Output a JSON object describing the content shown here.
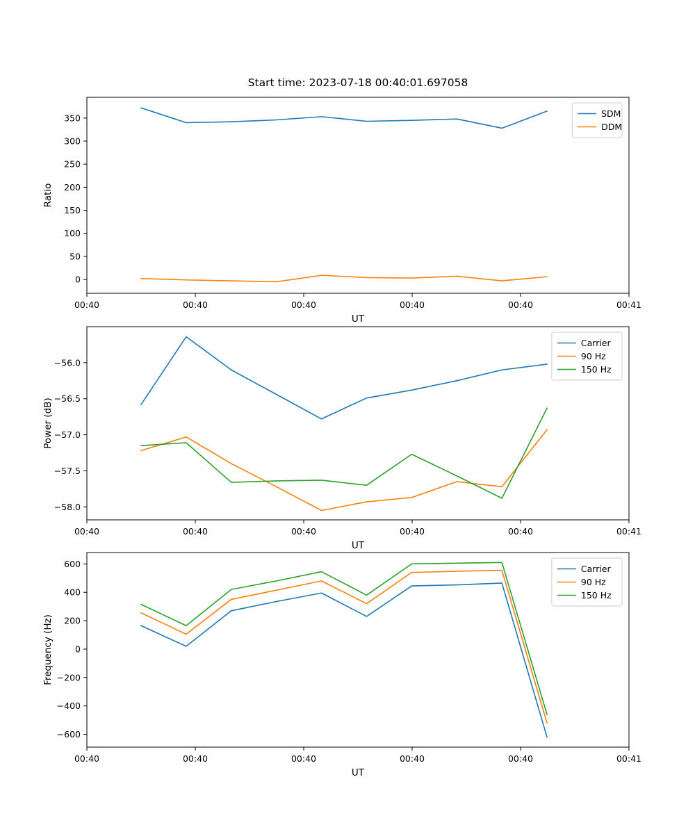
{
  "chart_data": [
    {
      "type": "line",
      "title": "Start time: 2023-07-18 00:40:01.697058",
      "xlabel": "UT",
      "ylabel": "Ratio",
      "grid": false,
      "legend_position": "upper right",
      "xlim": [
        0,
        5
      ],
      "ylim": [
        -30,
        395
      ],
      "xticklabels": [
        "00:40",
        "00:40",
        "00:40",
        "00:40",
        "00:40",
        "00:41"
      ],
      "yticks": [
        0,
        50,
        100,
        150,
        200,
        250,
        300,
        350
      ],
      "yticklabels": [
        "0",
        "50",
        "100",
        "150",
        "200",
        "250",
        "300",
        "350"
      ],
      "x": [
        0.5,
        0.916,
        1.332,
        1.748,
        2.164,
        2.58,
        2.996,
        3.412,
        3.828,
        4.244
      ],
      "series": [
        {
          "name": "SDM",
          "color": "#1f77b4",
          "values": [
            372,
            340,
            342,
            346,
            353,
            343,
            345,
            348,
            328,
            365
          ]
        },
        {
          "name": "DDM",
          "color": "#ff7f0e",
          "values": [
            2,
            -1,
            -3,
            -5,
            9,
            4,
            3,
            7,
            -3,
            6
          ]
        }
      ]
    },
    {
      "type": "line",
      "title": "",
      "xlabel": "UT",
      "ylabel": "Power (dB)",
      "grid": false,
      "legend_position": "upper right",
      "xlim": [
        0,
        5
      ],
      "ylim": [
        -58.18,
        -55.5
      ],
      "xticklabels": [
        "00:40",
        "00:40",
        "00:40",
        "00:40",
        "00:40",
        "00:41"
      ],
      "yticks": [
        -58.0,
        -57.5,
        -57.0,
        -56.5,
        -56.0
      ],
      "yticklabels": [
        "−58.0",
        "−57.5",
        "−57.0",
        "−56.5",
        "−56.0"
      ],
      "x": [
        0.5,
        0.916,
        1.332,
        1.748,
        2.164,
        2.58,
        2.996,
        3.412,
        3.828,
        4.244
      ],
      "series": [
        {
          "name": "Carrier",
          "color": "#1f77b4",
          "values": [
            -56.58,
            -55.64,
            -56.1,
            -56.44,
            -56.78,
            -56.49,
            -56.38,
            -56.25,
            -56.1,
            -56.02
          ]
        },
        {
          "name": "90 Hz",
          "color": "#ff7f0e",
          "values": [
            -57.22,
            -57.03,
            -57.4,
            -57.72,
            -58.05,
            -57.93,
            -57.87,
            -57.65,
            -57.72,
            -56.93
          ]
        },
        {
          "name": "150 Hz",
          "color": "#2ca02c",
          "values": [
            -57.15,
            -57.11,
            -57.66,
            -57.64,
            -57.63,
            -57.7,
            -57.27,
            -57.57,
            -57.88,
            -56.63
          ]
        }
      ]
    },
    {
      "type": "line",
      "title": "",
      "xlabel": "UT",
      "ylabel": "Frequency (Hz)",
      "grid": false,
      "legend_position": "upper right",
      "xlim": [
        0,
        5
      ],
      "ylim": [
        -690,
        680
      ],
      "xticklabels": [
        "00:40",
        "00:40",
        "00:40",
        "00:40",
        "00:40",
        "00:41"
      ],
      "yticks": [
        -600,
        -400,
        -200,
        0,
        200,
        400,
        600
      ],
      "yticklabels": [
        "−600",
        "−400",
        "−200",
        "0",
        "200",
        "400",
        "600"
      ],
      "x": [
        0.5,
        0.916,
        1.332,
        1.748,
        2.164,
        2.58,
        2.996,
        3.412,
        3.828,
        4.244
      ],
      "series": [
        {
          "name": "Carrier",
          "color": "#1f77b4",
          "values": [
            165,
            20,
            270,
            335,
            395,
            230,
            445,
            452,
            465,
            -620
          ]
        },
        {
          "name": "90 Hz",
          "color": "#ff7f0e",
          "values": [
            255,
            105,
            350,
            415,
            480,
            320,
            540,
            548,
            555,
            -520
          ]
        },
        {
          "name": "150 Hz",
          "color": "#2ca02c",
          "values": [
            315,
            165,
            420,
            480,
            545,
            380,
            600,
            605,
            610,
            -460
          ]
        }
      ]
    }
  ],
  "colors": {
    "blue": "#1f77b4",
    "orange": "#ff7f0e",
    "green": "#2ca02c",
    "axis": "#000000",
    "legend_edge": "#cccccc"
  }
}
